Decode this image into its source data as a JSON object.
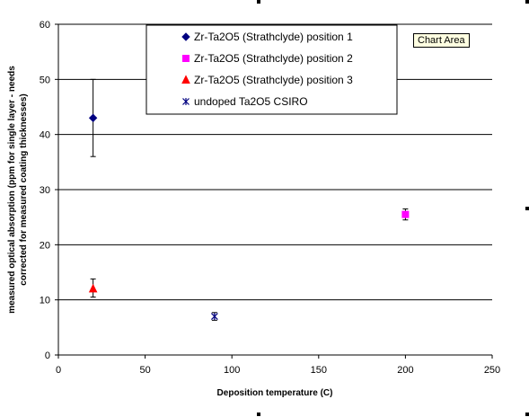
{
  "tooltip": "Chart Area",
  "chart_data": {
    "type": "scatter",
    "xlabel": "Deposition temperature (C)",
    "ylabel": "measured optical absorption (ppm for single layer - needs corrected for measured coating thicknesses)",
    "xlim": [
      0,
      250
    ],
    "ylim": [
      0,
      60
    ],
    "x_ticks": [
      0,
      50,
      100,
      150,
      200,
      250
    ],
    "y_ticks": [
      0,
      10,
      20,
      30,
      40,
      50,
      60
    ],
    "grid": "horizontal major gridlines",
    "legend_position": "top-center",
    "series": [
      {
        "name": "Zr-Ta2O5 (Strathclyde) position 1",
        "marker": "diamond",
        "color": "#000080",
        "points": [
          {
            "x": 20,
            "y": 43,
            "err_low": 36,
            "err_high": 50
          }
        ]
      },
      {
        "name": "Zr-Ta2O5 (Strathclyde) position 2",
        "marker": "square",
        "color": "#ff00ff",
        "points": [
          {
            "x": 200,
            "y": 25.5,
            "err_low": 24.5,
            "err_high": 26.5
          }
        ]
      },
      {
        "name": "Zr-Ta2O5 (Strathclyde) position 3",
        "marker": "triangle",
        "color": "#ff0000",
        "points": [
          {
            "x": 20,
            "y": 12,
            "err_low": 10.5,
            "err_high": 13.8
          }
        ]
      },
      {
        "name": "undoped Ta2O5 CSIRO",
        "marker": "x-star",
        "color": "#000080",
        "points": [
          {
            "x": 90,
            "y": 7,
            "err_low": 6.3,
            "err_high": 7.7
          }
        ]
      }
    ]
  }
}
